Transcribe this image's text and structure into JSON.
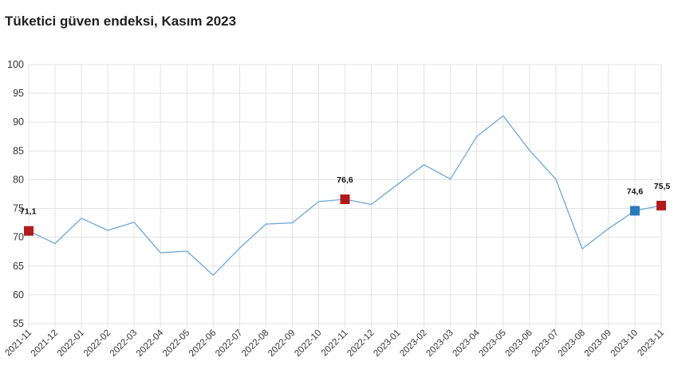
{
  "chart_data": {
    "type": "line",
    "title": "Tüketici güven endeksi, Kasım 2023",
    "xlabel": "",
    "ylabel": "",
    "x": [
      "2021-11",
      "2021-12",
      "2022-01",
      "2022-02",
      "2022-03",
      "2022-04",
      "2022-05",
      "2022-06",
      "2022-07",
      "2022-08",
      "2022-09",
      "2022-10",
      "2022-11",
      "2022-12",
      "2023-01",
      "2023-02",
      "2023-03",
      "2023-04",
      "2023-05",
      "2023-06",
      "2023-07",
      "2023-08",
      "2023-09",
      "2023-10",
      "2023-11"
    ],
    "series": [
      {
        "values": [
          71.1,
          68.9,
          73.3,
          71.2,
          72.6,
          67.3,
          67.6,
          63.4,
          68.1,
          72.3,
          72.5,
          76.2,
          76.6,
          75.7,
          79.2,
          82.6,
          80.1,
          87.5,
          91.1,
          85.1,
          80.1,
          68.0,
          71.5,
          74.6,
          75.5
        ],
        "color": "#6ea7d6"
      }
    ],
    "yticks": [
      55,
      60,
      65,
      70,
      75,
      80,
      85,
      90,
      95,
      100
    ],
    "ylim": [
      55,
      100
    ],
    "grid": true,
    "legend": "none",
    "highlights": [
      {
        "index": 0,
        "label": "71,1",
        "color": "#b01c1c"
      },
      {
        "index": 12,
        "label": "76,6",
        "color": "#b01c1c"
      },
      {
        "index": 23,
        "label": "74,6",
        "color": "#2a7ab8"
      },
      {
        "index": 24,
        "label": "75,5",
        "color": "#b01c1c"
      }
    ],
    "colors": {
      "grid": "#e3e3e3",
      "line": "#6ea7d6",
      "axis_text": "#333333"
    }
  }
}
